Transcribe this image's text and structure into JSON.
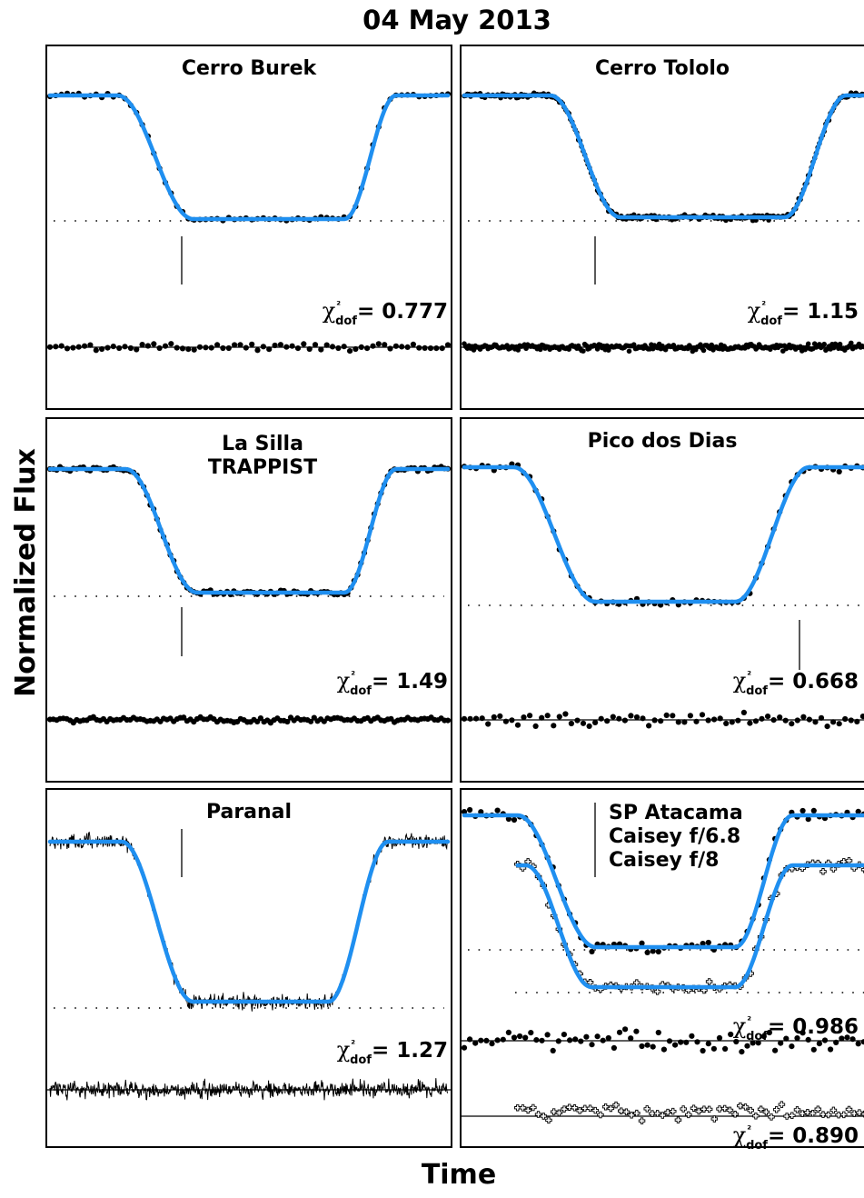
{
  "figure": {
    "title": "04 May 2013",
    "xlabel": "Time",
    "ylabel": "Normalized Flux"
  },
  "colors": {
    "model": "#1f8ff0",
    "data": "#000000",
    "frame": "#000000"
  },
  "chart_data": [
    {
      "type": "scatter",
      "panel": "Cerro Burek",
      "title_lines": [
        "Cerro Burek"
      ],
      "ingress": [
        0.17,
        0.36
      ],
      "egress": [
        0.74,
        0.87
      ],
      "depth": 0.76,
      "n_points": 70,
      "marker": "dot",
      "chi2_label": "χ²dof",
      "chi2_value": "= 0.777",
      "grid": false
    },
    {
      "type": "scatter",
      "panel": "Cerro Tololo",
      "title_lines": [
        "Cerro Tololo"
      ],
      "ingress": [
        0.21,
        0.38
      ],
      "egress": [
        0.78,
        0.93
      ],
      "depth": 0.76,
      "n_points": 260,
      "marker": "dot",
      "chi2_label": "χ²dof",
      "chi2_value": "= 1.15",
      "grid": false
    },
    {
      "type": "scatter",
      "panel": "La Silla TRAPPIST",
      "title_lines": [
        "La Silla",
        "TRAPPIST"
      ],
      "ingress": [
        0.19,
        0.37
      ],
      "egress": [
        0.74,
        0.87
      ],
      "depth": 0.76,
      "n_points": 120,
      "marker": "dot",
      "chi2_label": "χ²dof",
      "chi2_value": "= 1.49",
      "grid": false
    },
    {
      "type": "scatter",
      "panel": "Pico dos Dias",
      "title_lines": [
        "Pico dos Dias"
      ],
      "ingress": [
        0.12,
        0.32
      ],
      "egress": [
        0.66,
        0.84
      ],
      "depth": 0.76,
      "n_points": 70,
      "marker": "dot",
      "chi2_label": "χ²dof",
      "chi2_value": "= 0.668",
      "grid": false
    },
    {
      "type": "line",
      "panel": "Paranal",
      "title_lines": [
        "Paranal"
      ],
      "ingress": [
        0.18,
        0.36
      ],
      "egress": [
        0.7,
        0.85
      ],
      "depth": 0.76,
      "n_points": 700,
      "marker": "line",
      "chi2_label": "χ²dof",
      "chi2_value": "= 1.27",
      "grid": false
    },
    {
      "type": "scatter",
      "panel": "SP Atacama",
      "title_lines": [
        "SP Atacama",
        "Caisey f/6.8",
        "Caisey f/8"
      ],
      "series": [
        {
          "name": "Caisey f/6.8",
          "marker": "dot",
          "ingress": [
            0.13,
            0.32
          ],
          "egress": [
            0.66,
            0.8
          ],
          "depth": 0.76,
          "n_points": 75
        },
        {
          "name": "Caisey f/8",
          "marker": "cross",
          "ingress": [
            0.15,
            0.31
          ],
          "egress": [
            0.66,
            0.8
          ],
          "depth": 0.76,
          "n_points": 70
        }
      ],
      "chi2_label": "χ²dof",
      "chi2_value": "= 0.986",
      "chi2_value_2": "= 0.890",
      "grid": false
    }
  ]
}
